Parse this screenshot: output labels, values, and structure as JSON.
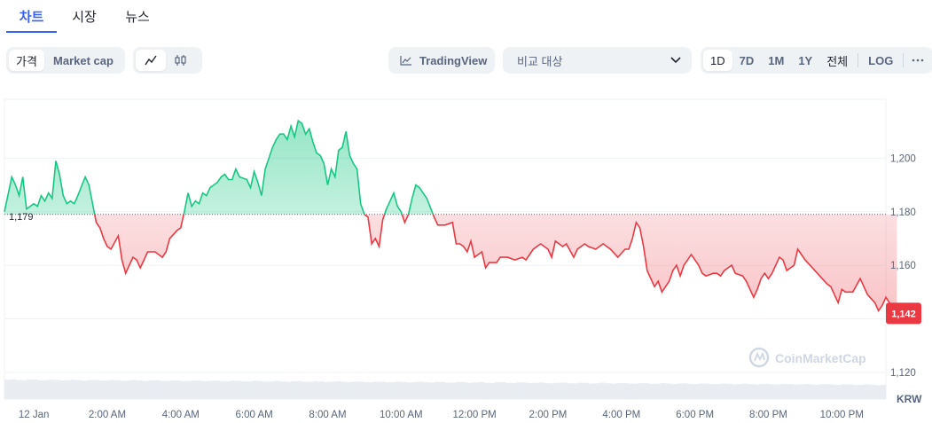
{
  "tabs": [
    {
      "label": "차트",
      "active": true
    },
    {
      "label": "시장",
      "active": false
    },
    {
      "label": "뉴스",
      "active": false
    }
  ],
  "metric_toggle": {
    "price_label": "가격",
    "marketcap_label": "Market cap"
  },
  "chart_style_toggle": {
    "line_icon": "line-chart-icon",
    "candle_icon": "candlestick-icon"
  },
  "tradingview": {
    "label": "TradingView",
    "icon": "chart-line-icon"
  },
  "compare": {
    "placeholder": "비교 대상",
    "icon": "chevron-down-icon"
  },
  "time_ranges": {
    "items": [
      "1D",
      "7D",
      "1M",
      "1Y",
      "전체"
    ],
    "active": "1D",
    "log_label": "LOG",
    "more_icon": "more-horizontal-icon"
  },
  "watermark": {
    "text": "CoinMarketCap",
    "icon": "coinmarketcap-logo-icon"
  },
  "colors": {
    "up": "#16c784",
    "down": "#ea3943",
    "accent": "#3861fb",
    "grid": "#eff2f5"
  },
  "chart_data": {
    "type": "area",
    "x_unit": "hours since 12 Jan 00:00",
    "x_ticks": [
      {
        "label": "12 Jan",
        "hour": 0
      },
      {
        "label": "2:00 AM",
        "hour": 2
      },
      {
        "label": "4:00 AM",
        "hour": 4
      },
      {
        "label": "6:00 AM",
        "hour": 6
      },
      {
        "label": "8:00 AM",
        "hour": 8
      },
      {
        "label": "10:00 AM",
        "hour": 10
      },
      {
        "label": "12:00 PM",
        "hour": 12
      },
      {
        "label": "2:00 PM",
        "hour": 14
      },
      {
        "label": "4:00 PM",
        "hour": 16
      },
      {
        "label": "6:00 PM",
        "hour": 18
      },
      {
        "label": "8:00 PM",
        "hour": 20
      },
      {
        "label": "10:00 PM",
        "hour": 22
      }
    ],
    "x_range": [
      -0.8,
      23.2
    ],
    "y_ticks": [
      1120,
      1140,
      1160,
      1180,
      1200
    ],
    "y_tick_labels": [
      "1,120",
      "",
      "1,160",
      "1,180",
      "1,200"
    ],
    "y_range": [
      1110,
      1222
    ],
    "y_unit": "KRW",
    "baseline": {
      "value": 1179,
      "label": "1,179"
    },
    "last_price": {
      "value": 1142,
      "label": "1,142"
    },
    "grid": true,
    "series": [
      {
        "values": [
          [
            -0.8,
            1180
          ],
          [
            -0.6,
            1193
          ],
          [
            -0.5,
            1190
          ],
          [
            -0.4,
            1186
          ],
          [
            -0.3,
            1193
          ],
          [
            -0.2,
            1181
          ],
          [
            0.0,
            1183
          ],
          [
            0.1,
            1182
          ],
          [
            0.2,
            1186
          ],
          [
            0.3,
            1184
          ],
          [
            0.4,
            1187
          ],
          [
            0.5,
            1185
          ],
          [
            0.6,
            1199
          ],
          [
            0.7,
            1194
          ],
          [
            0.8,
            1186
          ],
          [
            0.9,
            1183
          ],
          [
            1.0,
            1184
          ],
          [
            1.1,
            1183
          ],
          [
            1.2,
            1186
          ],
          [
            1.4,
            1193
          ],
          [
            1.5,
            1190
          ],
          [
            1.6,
            1183
          ],
          [
            1.7,
            1176
          ],
          [
            1.8,
            1174
          ],
          [
            1.9,
            1170
          ],
          [
            2.0,
            1167
          ],
          [
            2.1,
            1166
          ],
          [
            2.3,
            1171
          ],
          [
            2.4,
            1162
          ],
          [
            2.5,
            1157
          ],
          [
            2.6,
            1160
          ],
          [
            2.7,
            1163
          ],
          [
            2.8,
            1162
          ],
          [
            2.9,
            1159
          ],
          [
            3.0,
            1162
          ],
          [
            3.1,
            1165
          ],
          [
            3.3,
            1165
          ],
          [
            3.5,
            1163
          ],
          [
            3.6,
            1165
          ],
          [
            3.7,
            1170
          ],
          [
            3.9,
            1173
          ],
          [
            4.0,
            1174
          ],
          [
            4.1,
            1180
          ],
          [
            4.2,
            1187
          ],
          [
            4.3,
            1182
          ],
          [
            4.4,
            1184
          ],
          [
            4.5,
            1183
          ],
          [
            4.6,
            1187
          ],
          [
            4.7,
            1186
          ],
          [
            4.8,
            1189
          ],
          [
            5.0,
            1191
          ],
          [
            5.1,
            1193
          ],
          [
            5.2,
            1194
          ],
          [
            5.3,
            1192
          ],
          [
            5.4,
            1192
          ],
          [
            5.5,
            1196
          ],
          [
            5.6,
            1193
          ],
          [
            5.8,
            1192
          ],
          [
            5.9,
            1189
          ],
          [
            6.0,
            1195
          ],
          [
            6.1,
            1191
          ],
          [
            6.2,
            1186
          ],
          [
            6.3,
            1196
          ],
          [
            6.5,
            1204
          ],
          [
            6.6,
            1207
          ],
          [
            6.7,
            1209
          ],
          [
            6.8,
            1209
          ],
          [
            6.9,
            1207
          ],
          [
            7.0,
            1212
          ],
          [
            7.1,
            1208
          ],
          [
            7.2,
            1214
          ],
          [
            7.3,
            1213
          ],
          [
            7.4,
            1209
          ],
          [
            7.5,
            1211
          ],
          [
            7.6,
            1206
          ],
          [
            7.7,
            1202
          ],
          [
            7.8,
            1201
          ],
          [
            7.9,
            1198
          ],
          [
            8.0,
            1190
          ],
          [
            8.1,
            1196
          ],
          [
            8.2,
            1193
          ],
          [
            8.3,
            1203
          ],
          [
            8.4,
            1204
          ],
          [
            8.5,
            1210
          ],
          [
            8.6,
            1201
          ],
          [
            8.7,
            1198
          ],
          [
            8.8,
            1196
          ],
          [
            8.9,
            1183
          ],
          [
            9.0,
            1179
          ],
          [
            9.1,
            1178
          ],
          [
            9.2,
            1168
          ],
          [
            9.3,
            1170
          ],
          [
            9.4,
            1167
          ],
          [
            9.5,
            1177
          ],
          [
            9.6,
            1181
          ],
          [
            9.7,
            1184
          ],
          [
            9.8,
            1187
          ],
          [
            9.9,
            1182
          ],
          [
            10.0,
            1180
          ],
          [
            10.1,
            1176
          ],
          [
            10.2,
            1179
          ],
          [
            10.3,
            1185
          ],
          [
            10.4,
            1190
          ],
          [
            10.5,
            1189
          ],
          [
            10.7,
            1185
          ],
          [
            10.9,
            1178
          ],
          [
            11.0,
            1175
          ],
          [
            11.2,
            1175
          ],
          [
            11.4,
            1176
          ],
          [
            11.5,
            1168
          ],
          [
            11.6,
            1168
          ],
          [
            11.7,
            1167
          ],
          [
            11.8,
            1165
          ],
          [
            11.9,
            1169
          ],
          [
            12.0,
            1163
          ],
          [
            12.1,
            1164
          ],
          [
            12.2,
            1165
          ],
          [
            12.3,
            1159
          ],
          [
            12.4,
            1161
          ],
          [
            12.5,
            1161
          ],
          [
            12.6,
            1161
          ],
          [
            12.7,
            1163
          ],
          [
            12.9,
            1163
          ],
          [
            13.1,
            1162
          ],
          [
            13.3,
            1163
          ],
          [
            13.4,
            1162
          ],
          [
            13.6,
            1166
          ],
          [
            13.8,
            1168
          ],
          [
            13.9,
            1167
          ],
          [
            14.0,
            1166
          ],
          [
            14.1,
            1163
          ],
          [
            14.2,
            1169
          ],
          [
            14.4,
            1167
          ],
          [
            14.5,
            1168
          ],
          [
            14.7,
            1163
          ],
          [
            14.8,
            1166
          ],
          [
            15.0,
            1168
          ],
          [
            15.1,
            1167
          ],
          [
            15.3,
            1166
          ],
          [
            15.5,
            1168
          ],
          [
            15.7,
            1166
          ],
          [
            15.9,
            1163
          ],
          [
            16.1,
            1166
          ],
          [
            16.2,
            1166
          ],
          [
            16.3,
            1170
          ],
          [
            16.4,
            1176
          ],
          [
            16.5,
            1174
          ],
          [
            16.6,
            1167
          ],
          [
            16.7,
            1158
          ],
          [
            16.8,
            1155
          ],
          [
            16.9,
            1152
          ],
          [
            17.0,
            1154
          ],
          [
            17.1,
            1150
          ],
          [
            17.3,
            1154
          ],
          [
            17.4,
            1158
          ],
          [
            17.5,
            1160
          ],
          [
            17.6,
            1156
          ],
          [
            17.7,
            1160
          ],
          [
            17.8,
            1162
          ],
          [
            17.9,
            1164
          ],
          [
            18.1,
            1160
          ],
          [
            18.2,
            1157
          ],
          [
            18.3,
            1156
          ],
          [
            18.5,
            1157
          ],
          [
            18.6,
            1157
          ],
          [
            18.7,
            1156
          ],
          [
            18.8,
            1158
          ],
          [
            18.9,
            1159
          ],
          [
            19.0,
            1160
          ],
          [
            19.1,
            1157
          ],
          [
            19.3,
            1156
          ],
          [
            19.4,
            1154
          ],
          [
            19.6,
            1148
          ],
          [
            19.7,
            1151
          ],
          [
            19.8,
            1155
          ],
          [
            19.9,
            1157
          ],
          [
            20.0,
            1155
          ],
          [
            20.1,
            1157
          ],
          [
            20.3,
            1163
          ],
          [
            20.4,
            1162
          ],
          [
            20.5,
            1158
          ],
          [
            20.6,
            1159
          ],
          [
            20.7,
            1160
          ],
          [
            20.8,
            1166
          ],
          [
            20.9,
            1164
          ],
          [
            21.0,
            1162
          ],
          [
            21.2,
            1159
          ],
          [
            21.4,
            1156
          ],
          [
            21.6,
            1153
          ],
          [
            21.7,
            1152
          ],
          [
            21.8,
            1149
          ],
          [
            21.9,
            1146
          ],
          [
            22.0,
            1151
          ],
          [
            22.1,
            1150
          ],
          [
            22.3,
            1150
          ],
          [
            22.5,
            1155
          ],
          [
            22.6,
            1152
          ],
          [
            22.7,
            1149
          ],
          [
            22.9,
            1146
          ],
          [
            23.0,
            1143
          ],
          [
            23.1,
            1145
          ],
          [
            23.2,
            1148
          ],
          [
            23.3,
            1146
          ],
          [
            23.5,
            1142
          ]
        ]
      }
    ],
    "volume": {
      "note": "relative volume bars",
      "level_start": 0.95,
      "level_end": 0.7
    }
  }
}
